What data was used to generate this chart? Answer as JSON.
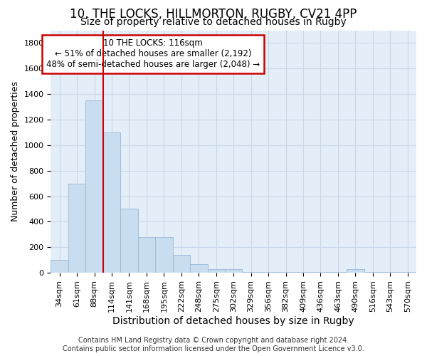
{
  "title1": "10, THE LOCKS, HILLMORTON, RUGBY, CV21 4PP",
  "title2": "Size of property relative to detached houses in Rugby",
  "xlabel": "Distribution of detached houses by size in Rugby",
  "ylabel": "Number of detached properties",
  "bar_labels": [
    "34sqm",
    "61sqm",
    "88sqm",
    "114sqm",
    "141sqm",
    "168sqm",
    "195sqm",
    "222sqm",
    "248sqm",
    "275sqm",
    "302sqm",
    "329sqm",
    "356sqm",
    "382sqm",
    "409sqm",
    "436sqm",
    "463sqm",
    "490sqm",
    "516sqm",
    "543sqm",
    "570sqm"
  ],
  "bar_values": [
    100,
    700,
    1350,
    1100,
    500,
    280,
    280,
    140,
    70,
    30,
    30,
    5,
    5,
    5,
    5,
    5,
    5,
    30,
    5,
    5,
    5
  ],
  "bar_color": "#c9ddf0",
  "bar_edgecolor": "#9ab8d8",
  "vline_color": "#cc0000",
  "annotation_line1": "10 THE LOCKS: 116sqm",
  "annotation_line2": "← 51% of detached houses are smaller (2,192)",
  "annotation_line3": "48% of semi-detached houses are larger (2,048) →",
  "annotation_box_color": "#cc0000",
  "ylim": [
    0,
    1900
  ],
  "yticks": [
    0,
    200,
    400,
    600,
    800,
    1000,
    1200,
    1400,
    1600,
    1800
  ],
  "grid_color": "#c8d8e8",
  "background_color": "#e4eef8",
  "footer": "Contains HM Land Registry data © Crown copyright and database right 2024.\nContains public sector information licensed under the Open Government Licence v3.0.",
  "title1_fontsize": 12,
  "title2_fontsize": 10,
  "xlabel_fontsize": 10,
  "ylabel_fontsize": 9,
  "tick_fontsize": 8,
  "annotation_fontsize": 8.5,
  "footer_fontsize": 7
}
